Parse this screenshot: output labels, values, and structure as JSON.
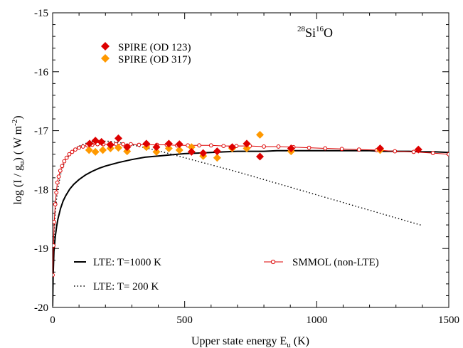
{
  "chart_data": {
    "type": "scatter",
    "title": "",
    "molecule_label": {
      "mass1": "28",
      "el1": "Si",
      "mass2": "16",
      "el2": "O"
    },
    "xlabel": {
      "prefix": "Upper state energy E",
      "subscript": "u",
      "suffix": " (K)"
    },
    "ylabel": {
      "prefix": "log (I / g",
      "subscript": "u",
      "mid": ") ( W m",
      "superscript": "-2",
      "suffix": ")"
    },
    "xlim": [
      0,
      1500
    ],
    "ylim": [
      -20,
      -15
    ],
    "xticks": [
      0,
      500,
      1000,
      1500
    ],
    "xtick_labels": [
      "0",
      "500",
      "1000",
      "1500"
    ],
    "yticks": [
      -20,
      -19,
      -18,
      -17,
      -16,
      -15
    ],
    "ytick_labels": [
      "-20",
      "-19",
      "-18",
      "-17",
      "-16",
      "-15"
    ],
    "grid": false,
    "colors": {
      "od123": "#dd0000",
      "od317": "#ff9900",
      "smmol": "#dd0000",
      "lte": "#000000"
    },
    "series": [
      {
        "name": "SPIRE (OD 123)",
        "kind": "diamond",
        "color": "#dd0000",
        "x": [
          140,
          162,
          185,
          219,
          249,
          282,
          355,
          393,
          440,
          480,
          526,
          570,
          623,
          680,
          735,
          785,
          903,
          1240,
          1385
        ],
        "y": [
          -17.22,
          -17.17,
          -17.19,
          -17.24,
          -17.13,
          -17.28,
          -17.22,
          -17.28,
          -17.22,
          -17.23,
          -17.36,
          -17.38,
          -17.35,
          -17.28,
          -17.22,
          -17.44,
          -17.3,
          -17.3,
          -17.32
        ]
      },
      {
        "name": "SPIRE (OD 317)",
        "kind": "diamond",
        "color": "#ff9900",
        "x": [
          138,
          162,
          190,
          219,
          249,
          282,
          355,
          393,
          440,
          480,
          526,
          570,
          623,
          680,
          735,
          785,
          903,
          1240
        ],
        "y": [
          -17.33,
          -17.36,
          -17.33,
          -17.3,
          -17.29,
          -17.35,
          -17.28,
          -17.36,
          -17.3,
          -17.33,
          -17.28,
          -17.43,
          -17.46,
          -17.3,
          -17.3,
          -17.07,
          -17.35,
          -17.33
        ]
      },
      {
        "name": "SMMOL (non-LTE)",
        "kind": "line-open-circles",
        "color": "#dd0000",
        "x": [
          0,
          3,
          6,
          10,
          14,
          18,
          23,
          29,
          36,
          44,
          53,
          63,
          74,
          86,
          100,
          115,
          132,
          150,
          170,
          192,
          215,
          240,
          267,
          296,
          327,
          360,
          395,
          432,
          471,
          512,
          555,
          600,
          647,
          696,
          747,
          800,
          855,
          912,
          971,
          1032,
          1095,
          1160,
          1227,
          1296,
          1367,
          1440,
          1500
        ],
        "y": [
          -19.45,
          -18.95,
          -18.55,
          -18.25,
          -18.05,
          -17.88,
          -17.78,
          -17.68,
          -17.6,
          -17.52,
          -17.46,
          -17.4,
          -17.36,
          -17.32,
          -17.29,
          -17.27,
          -17.25,
          -17.24,
          -17.23,
          -17.23,
          -17.23,
          -17.23,
          -17.23,
          -17.23,
          -17.24,
          -17.24,
          -17.24,
          -17.24,
          -17.25,
          -17.25,
          -17.25,
          -17.25,
          -17.26,
          -17.26,
          -17.26,
          -17.27,
          -17.27,
          -17.28,
          -17.29,
          -17.3,
          -17.31,
          -17.32,
          -17.33,
          -17.35,
          -17.36,
          -17.38,
          -17.4
        ]
      },
      {
        "name": "LTE: T=1000 K",
        "kind": "solid-line",
        "color": "#000000",
        "x": [
          0,
          2,
          5,
          10,
          15,
          20,
          30,
          40,
          50,
          65,
          80,
          100,
          125,
          150,
          175,
          200,
          250,
          300,
          350,
          400,
          450,
          500,
          550,
          600,
          650,
          700,
          750,
          800,
          850,
          900,
          950,
          1000,
          1050,
          1100,
          1150,
          1200,
          1250,
          1300,
          1350,
          1400,
          1450,
          1500
        ],
        "y": [
          -19.98,
          -19.45,
          -19.05,
          -18.8,
          -18.63,
          -18.5,
          -18.32,
          -18.19,
          -18.1,
          -17.99,
          -17.91,
          -17.83,
          -17.75,
          -17.69,
          -17.64,
          -17.6,
          -17.54,
          -17.49,
          -17.45,
          -17.43,
          -17.41,
          -17.39,
          -17.38,
          -17.37,
          -17.36,
          -17.35,
          -17.35,
          -17.35,
          -17.34,
          -17.34,
          -17.34,
          -17.34,
          -17.34,
          -17.34,
          -17.34,
          -17.34,
          -17.35,
          -17.35,
          -17.35,
          -17.36,
          -17.36,
          -17.37
        ]
      },
      {
        "name": "LTE: T= 200 K",
        "kind": "dotted-line",
        "color": "#000000",
        "x": [
          0,
          3,
          6,
          10,
          15,
          20,
          30,
          40,
          50,
          60,
          75,
          90,
          110,
          130,
          150,
          170,
          190,
          210,
          230,
          250,
          275,
          300,
          350,
          400,
          450,
          500,
          600,
          700,
          800,
          900,
          1000,
          1100,
          1200,
          1300,
          1400
        ],
        "y": [
          -19.8,
          -19.1,
          -18.7,
          -18.4,
          -18.15,
          -17.98,
          -17.75,
          -17.6,
          -17.5,
          -17.43,
          -17.35,
          -17.29,
          -17.24,
          -17.21,
          -17.19,
          -17.18,
          -17.18,
          -17.18,
          -17.19,
          -17.2,
          -17.22,
          -17.24,
          -17.29,
          -17.34,
          -17.4,
          -17.46,
          -17.58,
          -17.7,
          -17.83,
          -17.96,
          -18.09,
          -18.22,
          -18.35,
          -18.48,
          -18.61
        ]
      }
    ],
    "legend_top": [
      {
        "label": "SPIRE (OD 123)",
        "color": "#dd0000"
      },
      {
        "label": "SPIRE (OD 317)",
        "color": "#ff9900"
      }
    ],
    "legend_bottom": [
      {
        "label": "LTE: T=1000 K",
        "style": "solid"
      },
      {
        "label": "LTE: T= 200 K",
        "style": "dotted"
      },
      {
        "label": "SMMOL (non-LTE)",
        "style": "line-circle"
      }
    ]
  }
}
